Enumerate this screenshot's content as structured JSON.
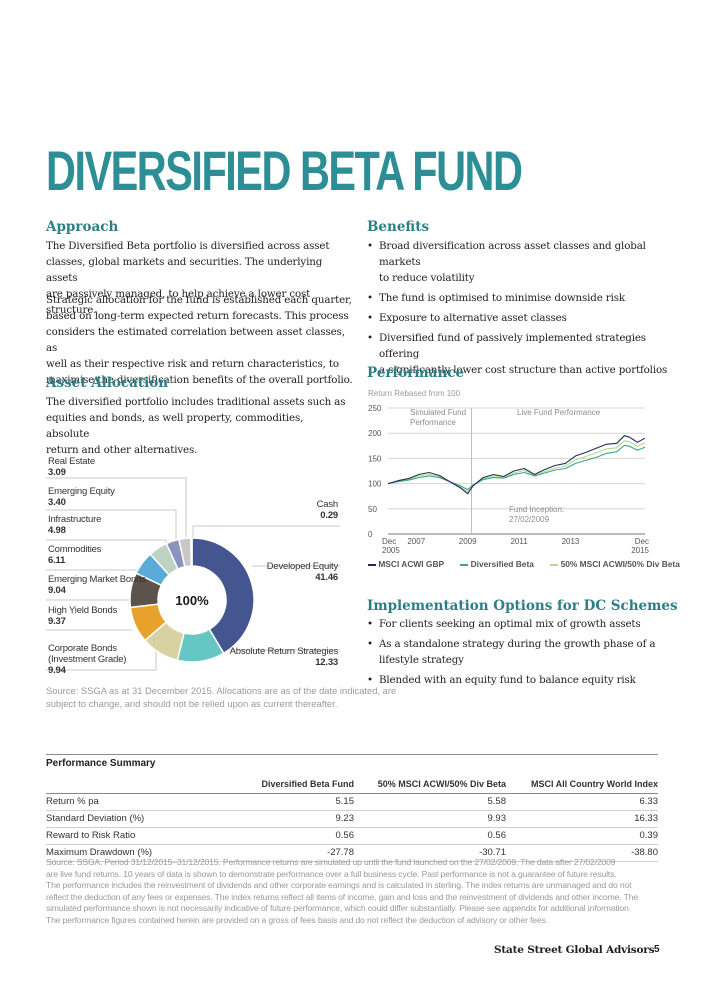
{
  "title": "DIVERSIFIED BETA FUND",
  "approach": {
    "heading": "Approach",
    "para1_lines": [
      "The Diversified Beta portfolio is diversified across asset",
      "classes, global markets and securities. The underlying assets",
      "are passively managed, to help achieve a lower cost structure."
    ],
    "para2_lines": [
      "Strategic allocation for the fund is established each quarter,",
      "based on long-term expected return forecasts. This process",
      "considers the estimated correlation between asset classes, as",
      "well as their respective risk and return characteristics, to",
      "maximise the diversification benefits of the overall portfolio."
    ]
  },
  "benefits": {
    "heading": "Benefits",
    "items": [
      [
        "Broad diversification across asset classes and global markets",
        "to reduce volatility"
      ],
      [
        "The fund is optimised to minimise downside risk"
      ],
      [
        "Exposure to alternative asset classes"
      ],
      [
        "Diversified fund of passively implemented strategies offering",
        "a significantly lower cost structure than active portfolios"
      ]
    ]
  },
  "asset_allocation": {
    "heading": "Asset Allocation",
    "para_lines": [
      "The diversified portfolio includes traditional assets such as",
      "equities and bonds, as well property, commodities, absolute",
      "return and other alternatives."
    ],
    "center_label": "100%",
    "labels": {
      "real_estate": {
        "name": "Real Estate",
        "value": "3.09"
      },
      "emerging_equity": {
        "name": "Emerging Equity",
        "value": "3.40"
      },
      "infrastructure": {
        "name": "Infrastructure",
        "value": "4.98"
      },
      "commodities": {
        "name": "Commodities",
        "value": "6.11"
      },
      "emerging_market_bonds": {
        "name": "Emerging Market Bonds",
        "value": "9.04"
      },
      "high_yield_bonds": {
        "name": "High Yield Bonds",
        "value": "9.37"
      },
      "corporate_bonds": {
        "name_line1": "Corporate Bonds",
        "name_line2": "(Investment Grade)",
        "value": "9.94"
      },
      "cash": {
        "name": "Cash",
        "value": "0.29"
      },
      "developed_equity": {
        "name": "Developed Equity",
        "value": "41.46"
      },
      "absolute_return": {
        "name": "Absolute Return Strategies",
        "value": "12.33"
      }
    },
    "source_lines": [
      "Source: SSGA as at 31 December 2015. Allocations are as of the date indicated, are",
      "subject to change, and should not be relied upon as current thereafter."
    ]
  },
  "chart_data": [
    {
      "type": "pie",
      "donut": true,
      "categories": [
        "Developed Equity",
        "Absolute Return Strategies",
        "Corporate Bonds (Investment Grade)",
        "High Yield Bonds",
        "Emerging Market Bonds",
        "Commodities",
        "Infrastructure",
        "Emerging Equity",
        "Real Estate",
        "Cash"
      ],
      "values": [
        41.46,
        12.33,
        9.94,
        9.37,
        9.04,
        6.11,
        4.98,
        3.4,
        3.09,
        0.29
      ],
      "colors": [
        "#45558f",
        "#66c6c4",
        "#d8d1a1",
        "#e8a22c",
        "#5d534d",
        "#5aabd9",
        "#bfd3c4",
        "#8c93bf",
        "#c8c8c8",
        "#2f7f86"
      ],
      "center_text": "100%"
    },
    {
      "type": "line",
      "title": "",
      "ylabel": "Return Rebased from 100",
      "ylim": [
        0,
        250
      ],
      "yticks": [
        "0",
        "50",
        "100",
        "150",
        "200",
        "250"
      ],
      "xticks": [
        {
          "line1": "Dec",
          "line2": "2005"
        },
        {
          "line1": "2007",
          "line2": ""
        },
        {
          "line1": "2009",
          "line2": ""
        },
        {
          "line1": "2011",
          "line2": ""
        },
        {
          "line1": "2013",
          "line2": ""
        },
        {
          "line1": "Dec",
          "line2": "2015"
        }
      ],
      "x": [
        2005.9,
        2006.3,
        2006.7,
        2007.1,
        2007.5,
        2007.9,
        2008.3,
        2008.7,
        2009.0,
        2009.2,
        2009.6,
        2010.0,
        2010.4,
        2010.8,
        2011.2,
        2011.6,
        2012.0,
        2012.4,
        2012.8,
        2013.2,
        2013.6,
        2014.0,
        2014.4,
        2014.8,
        2015.1,
        2015.3,
        2015.6,
        2015.9
      ],
      "series": [
        {
          "name": "MSCI ACWI GBP",
          "color": "#1f2e5c",
          "values": [
            100,
            106,
            110,
            118,
            122,
            116,
            104,
            92,
            80,
            95,
            112,
            118,
            114,
            125,
            130,
            118,
            128,
            136,
            140,
            155,
            162,
            170,
            178,
            180,
            195,
            192,
            182,
            190
          ]
        },
        {
          "name": "Diversified Beta",
          "color": "#3aa886",
          "values": [
            100,
            104,
            107,
            112,
            115,
            112,
            104,
            96,
            88,
            97,
            108,
            112,
            111,
            118,
            122,
            115,
            121,
            127,
            130,
            140,
            146,
            152,
            160,
            163,
            176,
            174,
            166,
            172
          ]
        },
        {
          "name": "50% MSCI ACWI/50% Div Beta",
          "color": "#b8d88a",
          "values": [
            100,
            105,
            108,
            115,
            118,
            114,
            104,
            94,
            84,
            96,
            110,
            115,
            112,
            121,
            126,
            116,
            124,
            131,
            135,
            147,
            154,
            161,
            169,
            171,
            185,
            183,
            174,
            181
          ]
        }
      ],
      "annotations": {
        "simulated": [
          "Simulated Fund",
          "Performance"
        ],
        "live": "Live Fund Performance",
        "inception": [
          "Fund Inception:",
          "27/02/2009"
        ]
      }
    }
  ],
  "performance": {
    "heading": "Performance",
    "axis_caption": "Return Rebased from 100",
    "legend": [
      "MSCI ACWI GBP",
      "Diversified Beta",
      "50% MSCI ACWI/50% Div Beta"
    ],
    "legend_colors": [
      "#1f2e5c",
      "#3aa886",
      "#b8d88a"
    ]
  },
  "implementation": {
    "heading": "Implementation Options for DC Schemes",
    "items": [
      [
        "For clients seeking an optimal mix of growth assets"
      ],
      [
        "As a standalone strategy during the growth phase of a",
        "lifestyle strategy"
      ],
      [
        "Blended with an equity fund to balance equity risk"
      ]
    ]
  },
  "summary": {
    "heading": "Performance Summary",
    "columns": [
      "",
      "Diversified Beta Fund",
      "50% MSCI ACWI/50% Div Beta",
      "MSCI All Country World Index"
    ],
    "rows": [
      [
        "Return % pa",
        "5.15",
        "5.58",
        "6.33"
      ],
      [
        "Standard Deviation (%)",
        "9.23",
        "9.93",
        "16.33"
      ],
      [
        "Reward to Risk Ratio",
        "0.56",
        "0.56",
        "0.39"
      ],
      [
        "Maximum Drawdown (%)",
        "-27.78",
        "-30.71",
        "-38.80"
      ]
    ],
    "source_lines": [
      "Source: SSGA. Period 31/12/2015–31/12/2015. Performance returns are simulated up until the fund launched on the 27/02/2009. The data after 27/02/2009",
      "are live fund returns. 10 years of data is shown to demonstrate performance over a full business cycle. Past performance is not a guarantee of future results.",
      "The performance includes the reinvestment of dividends and other corporate earnings and is calculated in sterling. The index returns are unmanaged and do not",
      "reflect the deduction of any fees or expenses. The index returns reflect all items of income, gain and loss and the reinvestment of dividends and other income. The",
      "simulated performance shown is not necessarily indicative of future performance, which could differ substantially. Please see appendix for additional information.",
      "The performance figures contained herein are provided on a gross of fees basis and do not reflect the deduction of advisory or other fees."
    ]
  },
  "footer": {
    "brand": "State Street Global Advisors",
    "page": "5"
  }
}
